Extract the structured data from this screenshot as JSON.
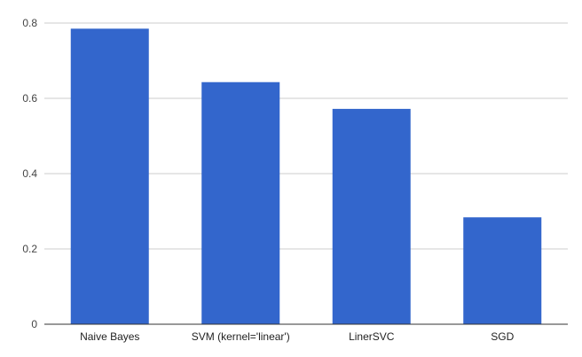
{
  "chart_data": {
    "type": "bar",
    "categories": [
      "Naive Bayes",
      "SVM (kernel='linear')",
      "LinerSVC",
      "SGD"
    ],
    "values": [
      0.785,
      0.643,
      0.572,
      0.284
    ],
    "title": "",
    "xlabel": "",
    "ylabel": "",
    "ylim": [
      0,
      0.8
    ],
    "yticks": [
      0,
      0.2,
      0.4,
      0.6,
      0.8
    ],
    "ytick_labels": [
      "0",
      "0.2",
      "0.4",
      "0.6",
      "0.8"
    ],
    "grid": true,
    "legend": "none",
    "bar_color": "#3366cc",
    "grid_color": "#cccccc",
    "baseline_color": "#333333"
  }
}
